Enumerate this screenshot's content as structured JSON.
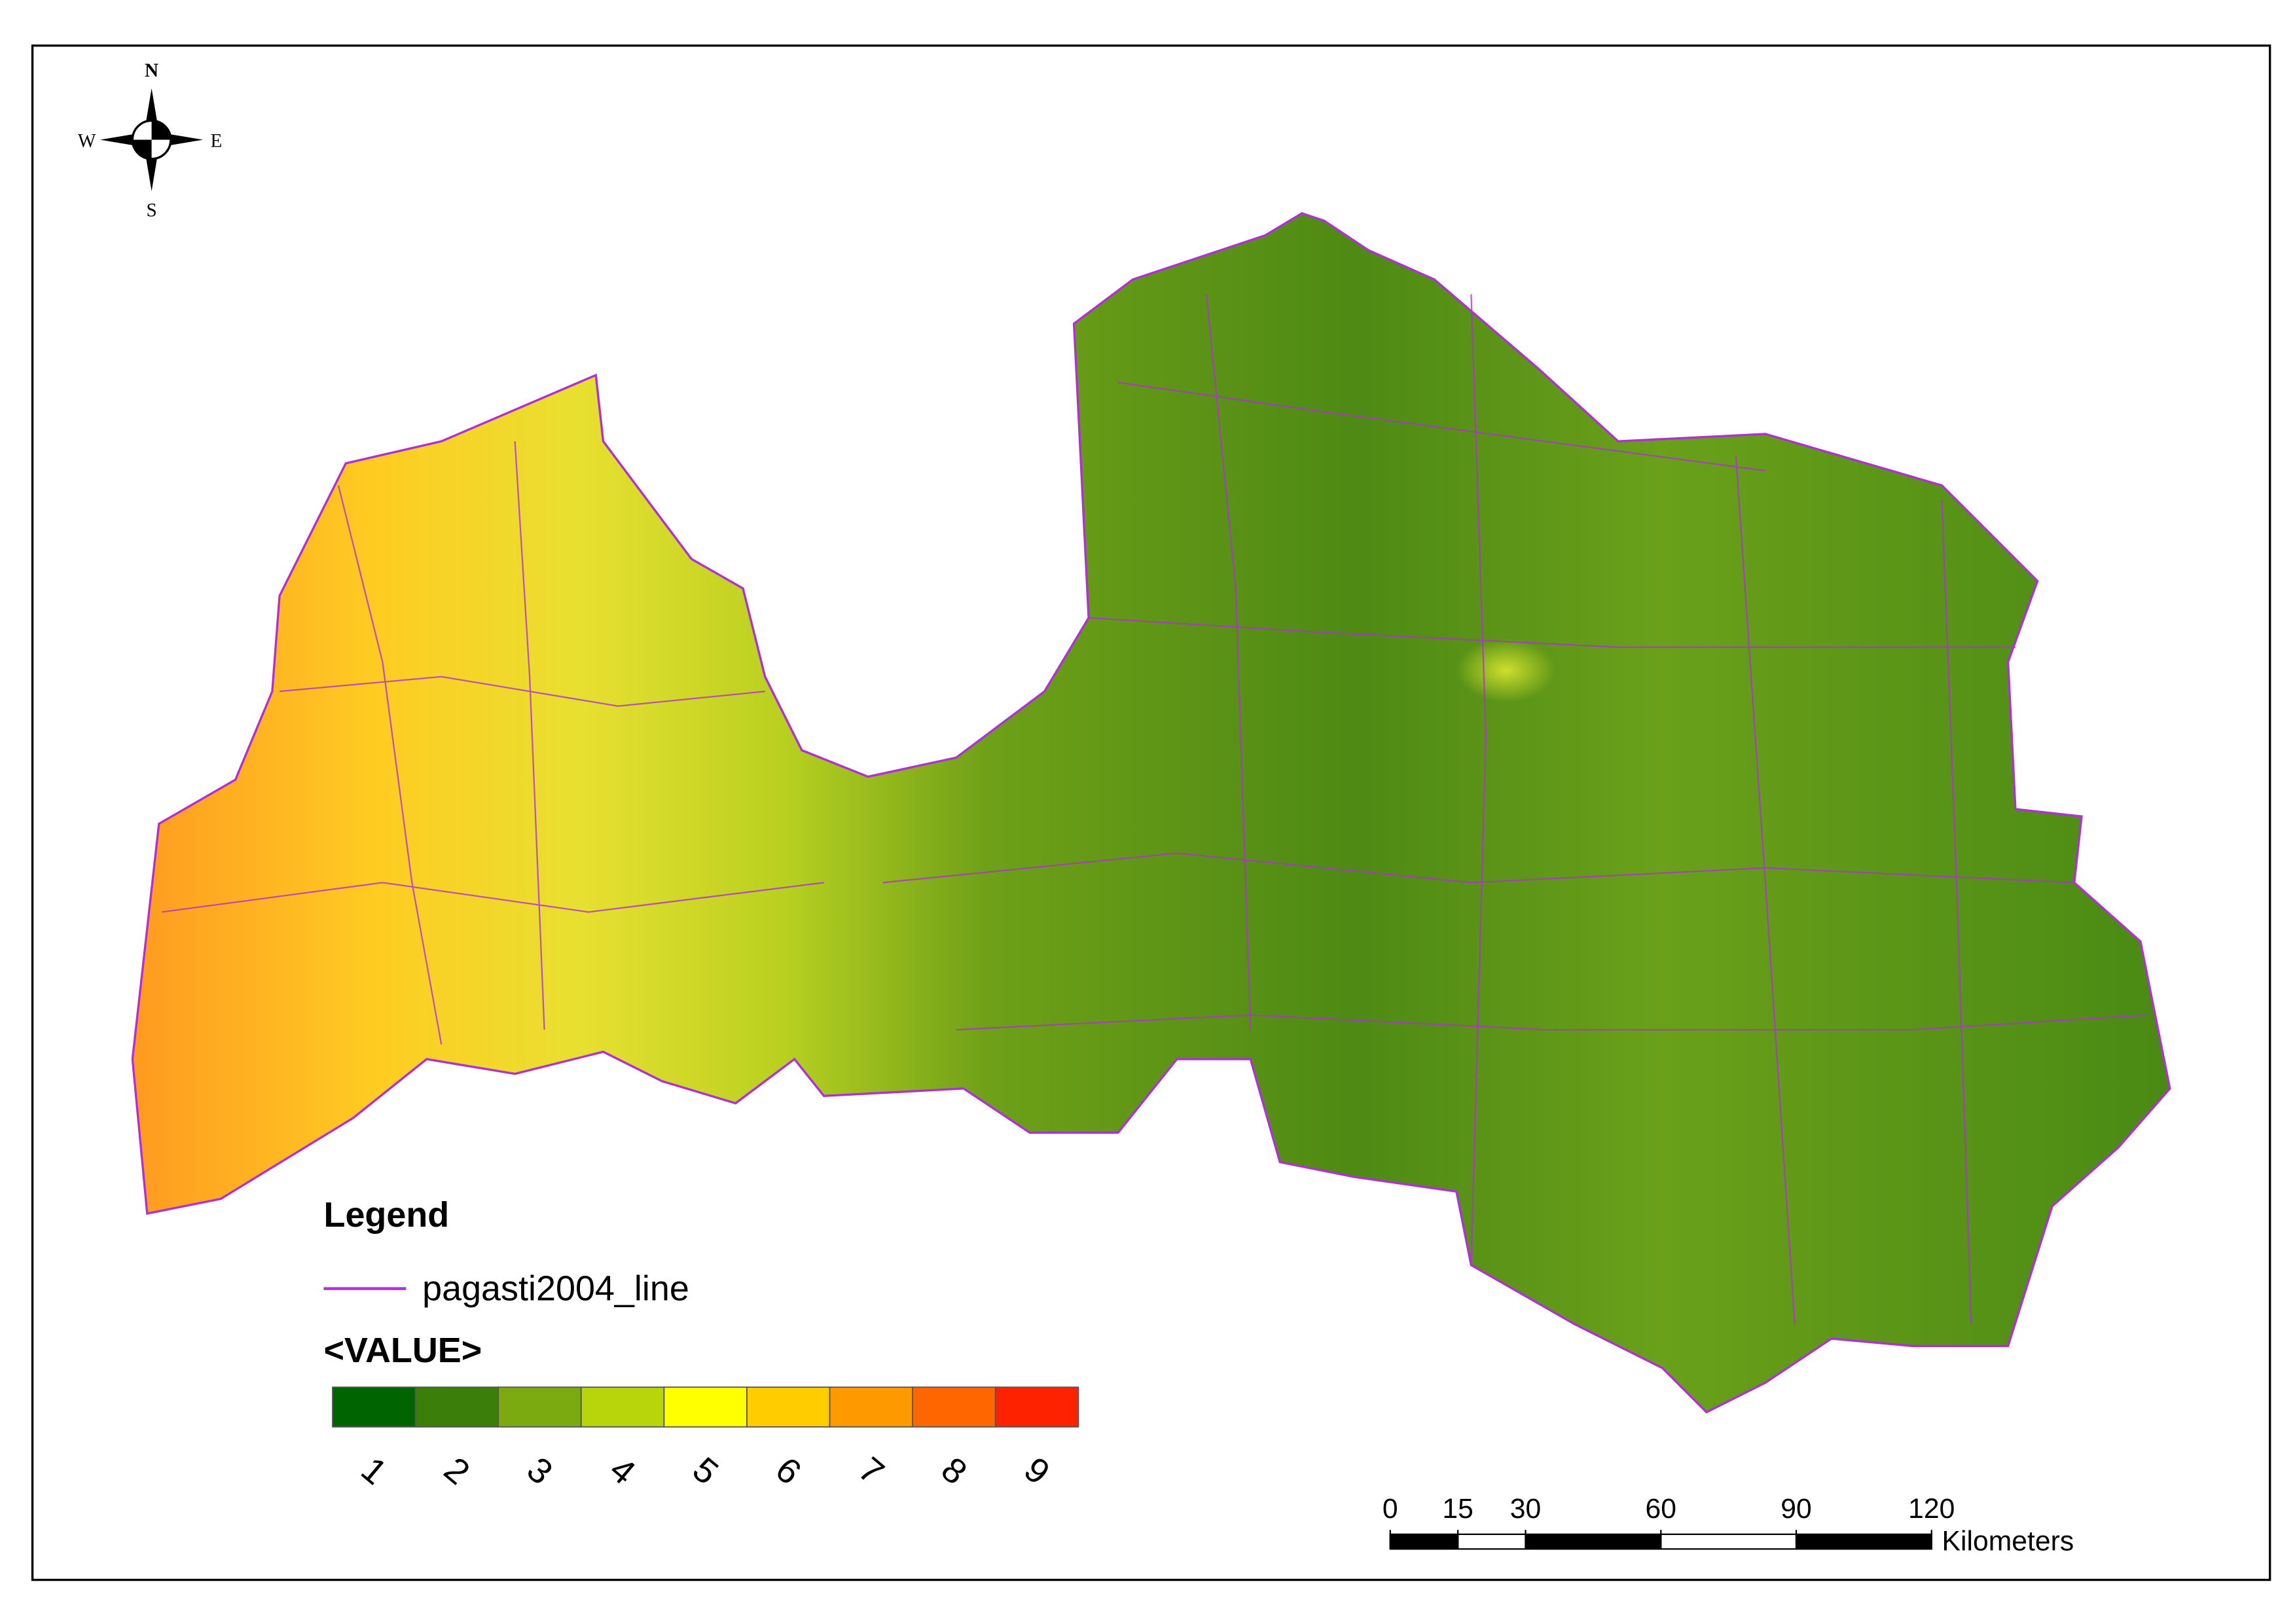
{
  "compass": {
    "n": "N",
    "e": "E",
    "s": "S",
    "w": "W"
  },
  "legend": {
    "title": "Legend",
    "line_layer": {
      "label": "pagasti2004_line",
      "color": "#b030d8"
    },
    "raster_title": "<VALUE>",
    "classes": [
      {
        "label": "1",
        "color": "#006400"
      },
      {
        "label": "2",
        "color": "#3a7f0a"
      },
      {
        "label": "3",
        "color": "#7aaa10"
      },
      {
        "label": "4",
        "color": "#b8d40a"
      },
      {
        "label": "5",
        "color": "#ffff00"
      },
      {
        "label": "6",
        "color": "#ffcc00"
      },
      {
        "label": "7",
        "color": "#ff9900"
      },
      {
        "label": "8",
        "color": "#ff6600"
      },
      {
        "label": "9",
        "color": "#ff2200"
      }
    ]
  },
  "scale_bar": {
    "ticks": [
      0,
      15,
      30,
      60,
      90,
      120
    ],
    "unit": "Kilometers"
  }
}
